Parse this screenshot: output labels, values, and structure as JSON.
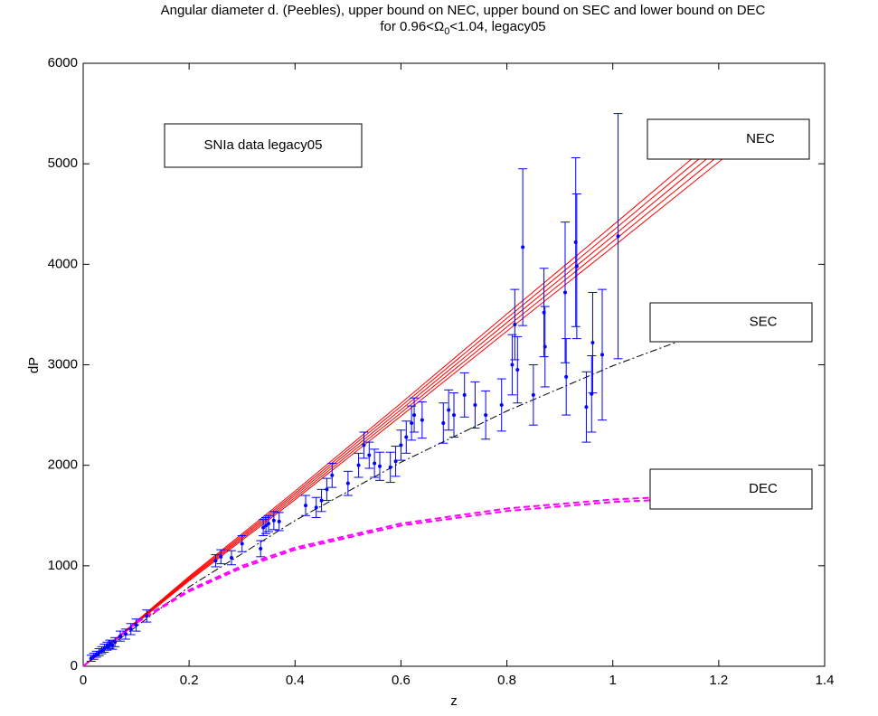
{
  "chart_data": {
    "type": "line",
    "title": "Angular diameter d. (Peebles), upper bound on NEC, upper bound on SEC and lower bound on DEC",
    "subtitle_parts": [
      "for 0.96<Ω",
      "0",
      "<1.04, legacy05"
    ],
    "xlabel": "z",
    "ylabel": "dP",
    "xlim": [
      0,
      1.4
    ],
    "ylim": [
      0,
      6000
    ],
    "xticks": [
      0,
      0.2,
      0.4,
      0.6,
      0.8,
      1,
      1.2,
      1.4
    ],
    "yticks": [
      0,
      1000,
      2000,
      3000,
      4000,
      5000,
      6000
    ],
    "grid": false,
    "series": [
      {
        "color": "#ff0000",
        "style": "solid",
        "width": 1,
        "x": [
          0,
          0.2,
          0.4,
          0.6,
          0.8,
          1.0,
          1.21
        ],
        "values": [
          0,
          894,
          1743,
          2618,
          3506,
          4387,
          5320
        ]
      },
      {
        "color": "#ff0000",
        "style": "solid",
        "width": 1,
        "x": [
          0,
          0.2,
          0.4,
          0.6,
          0.8,
          1.0,
          1.21
        ],
        "values": [
          0,
          883,
          1721,
          2586,
          3463,
          4334,
          5255
        ]
      },
      {
        "color": "#ff0000",
        "style": "solid",
        "width": 1,
        "x": [
          0,
          0.2,
          0.4,
          0.6,
          0.8,
          1.0,
          1.21
        ],
        "values": [
          0,
          872,
          1700,
          2554,
          3420,
          4280,
          5190
        ]
      },
      {
        "color": "#ff0000",
        "style": "solid",
        "width": 1,
        "x": [
          0,
          0.2,
          0.4,
          0.6,
          0.8,
          1.0,
          1.21
        ],
        "values": [
          0,
          861,
          1679,
          2522,
          3377,
          4227,
          5125
        ]
      },
      {
        "color": "#ff0000",
        "style": "solid",
        "width": 1,
        "x": [
          0,
          0.2,
          0.4,
          0.6,
          0.8,
          1.0,
          1.21
        ],
        "values": [
          0,
          850,
          1658,
          2490,
          3335,
          4173,
          5060
        ]
      },
      {
        "color": "#000000",
        "style": "dashdot",
        "width": 1,
        "x": [
          0,
          0.2,
          0.4,
          0.6,
          0.8,
          1.0,
          1.21
        ],
        "values": [
          0,
          790,
          1450,
          2030,
          2540,
          2990,
          3400
        ]
      },
      {
        "color": "#ff00ff",
        "style": "dashed",
        "width": 2,
        "x": [
          0,
          0.1,
          0.2,
          0.3,
          0.4,
          0.6,
          0.8,
          1.0,
          1.21
        ],
        "values": [
          0,
          440,
          760,
          1000,
          1180,
          1420,
          1570,
          1660,
          1710
        ]
      },
      {
        "color": "#ff00ff",
        "style": "dashed",
        "width": 2,
        "x": [
          0,
          0.1,
          0.2,
          0.3,
          0.4,
          0.6,
          0.8,
          1.0,
          1.21
        ],
        "values": [
          0,
          430,
          745,
          980,
          1160,
          1400,
          1545,
          1635,
          1685
        ]
      }
    ],
    "data_points": {
      "color": "#0000ff",
      "x": [
        0.015,
        0.02,
        0.025,
        0.03,
        0.035,
        0.04,
        0.045,
        0.05,
        0.055,
        0.06,
        0.07,
        0.08,
        0.09,
        0.1,
        0.12,
        0.25,
        0.26,
        0.28,
        0.3,
        0.335,
        0.34,
        0.345,
        0.35,
        0.36,
        0.37,
        0.42,
        0.44,
        0.45,
        0.46,
        0.47,
        0.5,
        0.52,
        0.53,
        0.54,
        0.55,
        0.56,
        0.58,
        0.59,
        0.6,
        0.61,
        0.62,
        0.625,
        0.64,
        0.68,
        0.69,
        0.7,
        0.72,
        0.74,
        0.76,
        0.79,
        0.81,
        0.815,
        0.82,
        0.83,
        0.85,
        0.87,
        0.872,
        0.91,
        0.912,
        0.93,
        0.932,
        0.95,
        0.96,
        0.962,
        0.98,
        1.01
      ],
      "values": [
        80,
        100,
        120,
        140,
        160,
        180,
        200,
        220,
        210,
        240,
        300,
        320,
        370,
        410,
        500,
        1050,
        1090,
        1080,
        1220,
        1170,
        1380,
        1400,
        1420,
        1450,
        1440,
        1600,
        1580,
        1650,
        1760,
        1900,
        1820,
        2000,
        2200,
        2100,
        2020,
        1990,
        1980,
        2040,
        2200,
        2280,
        2420,
        2500,
        2450,
        2420,
        2550,
        2500,
        2700,
        2600,
        2500,
        2600,
        3000,
        3400,
        2950,
        4170,
        2700,
        3520,
        3180,
        3720,
        2880,
        4220,
        3980,
        2580,
        2710,
        3220,
        3100,
        4280
      ],
      "errors": [
        30,
        30,
        30,
        35,
        35,
        40,
        40,
        40,
        40,
        45,
        50,
        50,
        55,
        60,
        60,
        60,
        70,
        70,
        80,
        80,
        80,
        80,
        80,
        90,
        90,
        100,
        100,
        110,
        110,
        120,
        120,
        120,
        130,
        130,
        140,
        140,
        150,
        150,
        150,
        160,
        170,
        170,
        180,
        200,
        200,
        220,
        220,
        230,
        240,
        260,
        300,
        350,
        330,
        780,
        300,
        440,
        400,
        700,
        380,
        840,
        720,
        350,
        380,
        500,
        650,
        1220
      ]
    },
    "annotations": [
      "SNIa data legacy05",
      "NEC",
      "SEC",
      "DEC"
    ]
  }
}
